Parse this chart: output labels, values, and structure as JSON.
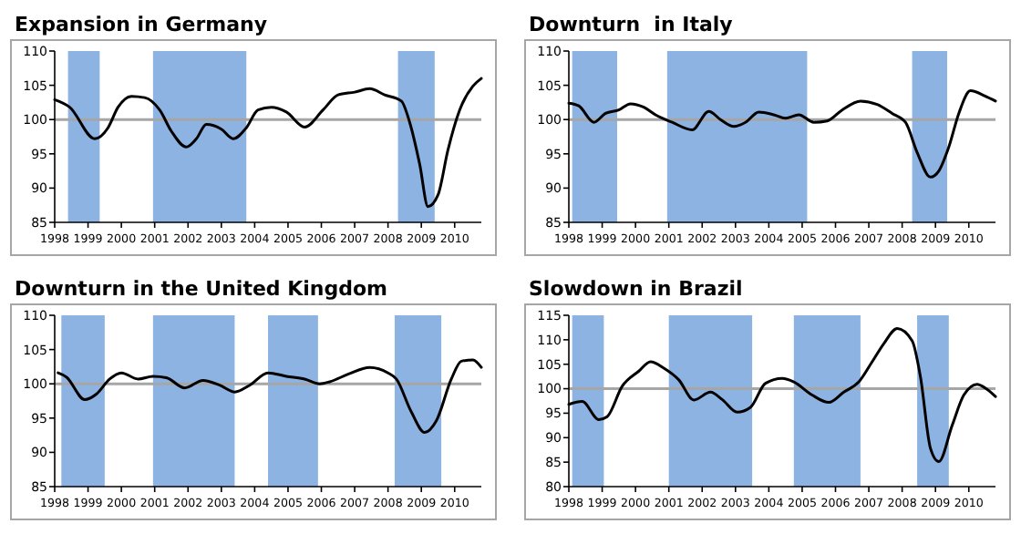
{
  "chart_data": [
    {
      "type": "line",
      "title": "Expansion in Germany",
      "xlim": [
        1998,
        2010.8
      ],
      "xticks": [
        1998,
        1999,
        2000,
        2001,
        2002,
        2003,
        2004,
        2005,
        2006,
        2007,
        2008,
        2009,
        2010
      ],
      "ylim": [
        85,
        110
      ],
      "yticks": [
        85,
        90,
        95,
        100,
        105,
        110
      ],
      "bands": [
        {
          "axis": "x",
          "from": 1998.4,
          "to": 1999.35,
          "color": "#8db3e2"
        },
        {
          "axis": "x",
          "from": 2000.95,
          "to": 2003.75,
          "color": "#8db3e2"
        },
        {
          "axis": "x",
          "from": 2008.3,
          "to": 2009.4,
          "color": "#8db3e2"
        }
      ],
      "ref_lines": [
        {
          "axis": "y",
          "value": 100,
          "color": "#a6a6a6"
        }
      ],
      "series": [
        {
          "color": "#000000",
          "x": [
            1998,
            1998.45,
            1999.2,
            1999.6,
            1999.9,
            2000.3,
            2000.7,
            2001.15,
            2001.5,
            2001.95,
            2002.25,
            2002.55,
            2003.0,
            2003.35,
            2003.75,
            2004.1,
            2004.5,
            2004.95,
            2005.5,
            2006.05,
            2006.5,
            2007.0,
            2007.45,
            2007.9,
            2008.4,
            2008.65,
            2008.95,
            2009.2,
            2009.5,
            2009.8,
            2010.15,
            2010.55,
            2010.8
          ],
          "values": [
            102.9,
            101.8,
            97.2,
            98.8,
            101.8,
            103.4,
            103.2,
            101.4,
            98.3,
            96,
            97.2,
            99.3,
            98.6,
            97.2,
            98.8,
            101.4,
            101.8,
            101.1,
            98.9,
            101.4,
            103.6,
            104,
            104.5,
            103.6,
            102.7,
            99.6,
            93.5,
            87.3,
            89,
            95.6,
            101.4,
            104.9,
            106
          ]
        }
      ]
    },
    {
      "type": "line",
      "title": "Downturn  in Italy",
      "xlim": [
        1998,
        2010.8
      ],
      "xticks": [
        1998,
        1999,
        2000,
        2001,
        2002,
        2003,
        2004,
        2005,
        2006,
        2007,
        2008,
        2009,
        2010
      ],
      "ylim": [
        85,
        110
      ],
      "yticks": [
        85,
        90,
        95,
        100,
        105,
        110
      ],
      "bands": [
        {
          "axis": "x",
          "from": 1998.1,
          "to": 1999.45,
          "color": "#8db3e2"
        },
        {
          "axis": "x",
          "from": 2000.95,
          "to": 2005.15,
          "color": "#8db3e2"
        },
        {
          "axis": "x",
          "from": 2008.3,
          "to": 2009.35,
          "color": "#8db3e2"
        }
      ],
      "ref_lines": [
        {
          "axis": "y",
          "value": 100,
          "color": "#a6a6a6"
        }
      ],
      "series": [
        {
          "color": "#000000",
          "x": [
            1998,
            1998.3,
            1998.75,
            1999.1,
            1999.5,
            1999.85,
            2000.25,
            2000.6,
            2001.1,
            2001.7,
            2002.2,
            2002.55,
            2002.95,
            2003.3,
            2003.7,
            2004.15,
            2004.5,
            2004.9,
            2005.35,
            2005.75,
            2006.2,
            2006.75,
            2007.25,
            2007.7,
            2008.1,
            2008.45,
            2008.85,
            2009.1,
            2009.4,
            2009.7,
            2010.05,
            2010.5,
            2010.8
          ],
          "values": [
            102.4,
            102,
            99.6,
            100.9,
            101.4,
            102.3,
            101.8,
            100.7,
            99.6,
            98.5,
            101.2,
            100,
            99,
            99.6,
            101.1,
            100.7,
            100.2,
            100.7,
            99.6,
            99.8,
            101.4,
            102.7,
            102.2,
            100.9,
            99.6,
            95.2,
            91.6,
            92.5,
            96,
            100.9,
            104.2,
            103.4,
            102.7
          ]
        }
      ]
    },
    {
      "type": "line",
      "title": "Downturn in the United Kingdom",
      "xlim": [
        1998,
        2010.8
      ],
      "xticks": [
        1998,
        1999,
        2000,
        2001,
        2002,
        2003,
        2004,
        2005,
        2006,
        2007,
        2008,
        2009,
        2010
      ],
      "ylim": [
        85,
        110
      ],
      "yticks": [
        85,
        90,
        95,
        100,
        105,
        110
      ],
      "bands": [
        {
          "axis": "x",
          "from": 1998.2,
          "to": 1999.5,
          "color": "#8db3e2"
        },
        {
          "axis": "x",
          "from": 2000.95,
          "to": 2003.4,
          "color": "#8db3e2"
        },
        {
          "axis": "x",
          "from": 2004.4,
          "to": 2005.9,
          "color": "#8db3e2"
        },
        {
          "axis": "x",
          "from": 2008.2,
          "to": 2009.6,
          "color": "#8db3e2"
        }
      ],
      "ref_lines": [
        {
          "axis": "y",
          "value": 100,
          "color": "#a6a6a6"
        }
      ],
      "series": [
        {
          "color": "#000000",
          "x": [
            1998.1,
            1998.35,
            1998.9,
            1999.25,
            1999.65,
            2000,
            2000.5,
            2000.95,
            2001.35,
            2001.9,
            2002.45,
            2002.95,
            2003.4,
            2003.85,
            2004.4,
            2004.95,
            2005.5,
            2005.95,
            2006.25,
            2006.8,
            2007.45,
            2008,
            2008.25,
            2008.7,
            2009.1,
            2009.45,
            2009.9,
            2010.2,
            2010.55,
            2010.8
          ],
          "values": [
            101.6,
            101,
            97.7,
            98.5,
            100.7,
            101.6,
            100.7,
            101.1,
            100.9,
            99.4,
            100.5,
            99.8,
            98.8,
            99.8,
            101.6,
            101.1,
            100.7,
            100,
            100.3,
            101.4,
            102.4,
            101.6,
            100.7,
            95.9,
            92.9,
            94.6,
            100.7,
            103.3,
            103.5,
            102.4
          ]
        }
      ]
    },
    {
      "type": "line",
      "title": "Slowdown in Brazil",
      "xlim": [
        1998,
        2010.8
      ],
      "xticks": [
        1998,
        1999,
        2000,
        2001,
        2002,
        2003,
        2004,
        2005,
        2006,
        2007,
        2008,
        2009,
        2010
      ],
      "ylim": [
        80,
        115
      ],
      "yticks": [
        80,
        85,
        90,
        95,
        100,
        105,
        110,
        115
      ],
      "bands": [
        {
          "axis": "x",
          "from": 1998.1,
          "to": 1999.05,
          "color": "#8db3e2"
        },
        {
          "axis": "x",
          "from": 2001,
          "to": 2003.5,
          "color": "#8db3e2"
        },
        {
          "axis": "x",
          "from": 2004.75,
          "to": 2006.75,
          "color": "#8db3e2"
        },
        {
          "axis": "x",
          "from": 2008.45,
          "to": 2009.4,
          "color": "#8db3e2"
        }
      ],
      "ref_lines": [
        {
          "axis": "y",
          "value": 100,
          "color": "#a6a6a6"
        }
      ],
      "series": [
        {
          "color": "#000000",
          "x": [
            1998,
            1998.4,
            1998.9,
            1999.15,
            1999.6,
            2000.1,
            2000.45,
            2000.85,
            2001.3,
            2001.75,
            2002.25,
            2002.6,
            2003.05,
            2003.45,
            2003.9,
            2004.4,
            2004.75,
            2005.3,
            2005.8,
            2006.25,
            2006.7,
            2007.1,
            2007.45,
            2007.85,
            2008.3,
            2008.55,
            2008.85,
            2009.1,
            2009.5,
            2009.85,
            2010.25,
            2010.5,
            2010.8
          ],
          "values": [
            96.8,
            97.4,
            93.7,
            94.3,
            100.5,
            103.6,
            105.5,
            104.2,
            101.8,
            97.7,
            99.3,
            97.8,
            95.2,
            96.2,
            101.1,
            102.1,
            101.4,
            98.7,
            97.2,
            99.3,
            101.4,
            105.5,
            109.2,
            112.3,
            109.8,
            102.4,
            87.8,
            85.1,
            92.5,
            98.7,
            100.9,
            100.1,
            98.4
          ]
        }
      ]
    }
  ]
}
